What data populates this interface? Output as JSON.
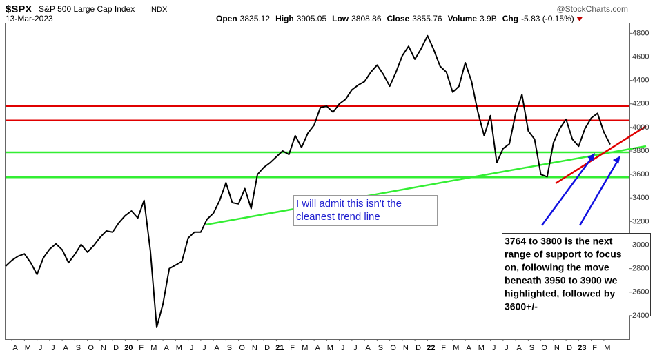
{
  "chart_data": {
    "type": "line",
    "symbol": "$SPX",
    "name": "S&P 500 Large Cap Index",
    "exchange": "INDX",
    "source": "@StockCharts.com",
    "date": "13-Mar-2023",
    "quote": [
      {
        "label": "Open",
        "value": "3835.12"
      },
      {
        "label": "High",
        "value": "3905.05"
      },
      {
        "label": "Low",
        "value": "3808.86"
      },
      {
        "label": "Close",
        "value": "3855.76"
      },
      {
        "label": "Volume",
        "value": "3.9B"
      },
      {
        "label": "Chg",
        "value": "-5.83 (-0.15%)"
      }
    ],
    "categories": [
      null,
      "A",
      null,
      "M",
      null,
      "J",
      null,
      "J",
      null,
      "A",
      null,
      "S",
      null,
      "O",
      null,
      "N",
      null,
      "D",
      null,
      "20",
      null,
      "F",
      null,
      "M",
      null,
      "A",
      null,
      "M",
      null,
      "J",
      null,
      "J",
      null,
      "A",
      null,
      "S",
      null,
      "O",
      null,
      "N",
      null,
      "D",
      null,
      "21",
      null,
      "F",
      null,
      "M",
      null,
      "A",
      null,
      "M",
      null,
      "J",
      null,
      "J",
      null,
      "A",
      null,
      "S",
      null,
      "O",
      null,
      "N",
      null,
      "D",
      null,
      "22",
      null,
      "F",
      null,
      "M",
      null,
      "A",
      null,
      "M",
      null,
      "J",
      null,
      "J",
      null,
      "A",
      null,
      "S",
      null,
      "O",
      null,
      "N",
      null,
      "D",
      null,
      "23",
      null,
      "F",
      null,
      "M",
      null
    ],
    "series": [
      {
        "name": "$SPX",
        "color": "#000000",
        "values": [
          2820,
          2870,
          2905,
          2925,
          2850,
          2750,
          2890,
          2965,
          3010,
          2960,
          2850,
          2920,
          3005,
          2940,
          2995,
          3065,
          3120,
          3110,
          3190,
          3250,
          3290,
          3230,
          3380,
          2950,
          2300,
          2500,
          2800,
          2830,
          2860,
          3060,
          3110,
          3110,
          3220,
          3270,
          3380,
          3530,
          3360,
          3350,
          3480,
          3310,
          3600,
          3660,
          3700,
          3750,
          3800,
          3770,
          3930,
          3830,
          3950,
          4020,
          4170,
          4180,
          4130,
          4200,
          4240,
          4320,
          4360,
          4390,
          4470,
          4530,
          4450,
          4350,
          4470,
          4610,
          4690,
          4580,
          4670,
          4780,
          4660,
          4520,
          4470,
          4300,
          4350,
          4550,
          4390,
          4130,
          3930,
          4100,
          3700,
          3820,
          3860,
          4120,
          4280,
          3970,
          3900,
          3600,
          3580,
          3870,
          3990,
          4070,
          3900,
          3840,
          3990,
          4080,
          4120,
          3960,
          3855
        ]
      }
    ],
    "levels": [
      {
        "value": 4182,
        "color": "#e00000"
      },
      {
        "value": 4059,
        "color": "#e00000"
      },
      {
        "value": 3788,
        "color": "#33ee33"
      },
      {
        "value": 3576,
        "color": "#33ee33"
      }
    ],
    "ylim": [
      2200,
      4890
    ],
    "yticks": [
      2400,
      2600,
      2800,
      3000,
      3200,
      3400,
      3600,
      3800,
      4000,
      4200,
      4400,
      4600,
      4800
    ],
    "grid": false,
    "annotations": [
      {
        "lines": [
          "I will admit this isn't the",
          "cleanest trend line"
        ]
      },
      {
        "lines": [
          "3764 to 3800 is the next",
          "range of support to focus",
          "on, following the move",
          "beneath 3950 to 3900 we",
          "highlighted, followed by",
          "3600+/-"
        ]
      }
    ]
  }
}
